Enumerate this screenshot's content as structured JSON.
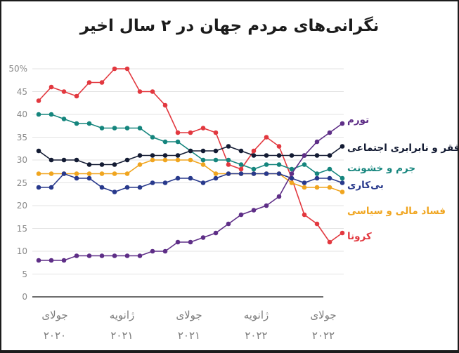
{
  "chart_data": {
    "type": "line",
    "title": "نگرانی‌های مردم جهان در ۲ سال اخیر",
    "xlabel": "",
    "ylabel": "",
    "ylim": [
      0,
      50
    ],
    "grid": true,
    "legend_position": "right",
    "points_count": 25,
    "y_ticks": [
      {
        "label": "50%",
        "value": 50
      },
      {
        "label": "45",
        "value": 45
      },
      {
        "label": "40",
        "value": 40
      },
      {
        "label": "35",
        "value": 35
      },
      {
        "label": "30",
        "value": 30
      },
      {
        "label": "25",
        "value": 25
      },
      {
        "label": "20",
        "value": 20
      },
      {
        "label": "15",
        "value": 15
      },
      {
        "label": "10",
        "value": 10
      },
      {
        "label": "5",
        "value": 5
      },
      {
        "label": "0",
        "value": 0
      }
    ],
    "x_ticks": [
      {
        "month": "جولای",
        "year": "۲۰۲۰",
        "index": 0
      },
      {
        "month": "ژانویه",
        "year": "۲۰۲۱",
        "index": 6
      },
      {
        "month": "جولای",
        "year": "۲۰۲۱",
        "index": 12
      },
      {
        "month": "ژانویه",
        "year": "۲۰۲۲",
        "index": 18
      },
      {
        "month": "جولای",
        "year": "۲۰۲۲",
        "index": 24
      }
    ],
    "series": [
      {
        "key": "inflation",
        "label": "تورم",
        "color": "#5e2e87",
        "values": [
          8,
          8,
          8,
          9,
          9,
          9,
          9,
          9,
          9,
          10,
          10,
          12,
          12,
          13,
          14,
          16,
          18,
          19,
          20,
          22,
          27,
          31,
          34,
          36,
          38
        ]
      },
      {
        "key": "poverty-inequality",
        "label": "فقر و نابرابری اجتماعی",
        "color": "#131b33",
        "values": [
          32,
          30,
          30,
          30,
          29,
          29,
          29,
          30,
          31,
          31,
          31,
          31,
          32,
          32,
          32,
          33,
          32,
          31,
          31,
          31,
          31,
          31,
          31,
          31,
          33
        ]
      },
      {
        "key": "crime-violence",
        "label": "جرم و خشونت",
        "color": "#15857d",
        "values": [
          40,
          40,
          39,
          38,
          38,
          37,
          37,
          37,
          37,
          35,
          34,
          34,
          32,
          30,
          30,
          30,
          29,
          28,
          29,
          29,
          28,
          29,
          27,
          28,
          26
        ]
      },
      {
        "key": "unemployment",
        "label": "بی‌کاری",
        "color": "#28398c",
        "values": [
          24,
          24,
          27,
          26,
          26,
          24,
          23,
          24,
          24,
          25,
          25,
          26,
          26,
          25,
          26,
          27,
          27,
          27,
          27,
          27,
          26,
          25,
          26,
          26,
          25
        ]
      },
      {
        "key": "corruption",
        "label": "فساد مالی و سیاسی",
        "color": "#f0a51f",
        "values": [
          27,
          27,
          27,
          27,
          27,
          27,
          27,
          27,
          29,
          30,
          30,
          30,
          30,
          29,
          27,
          27,
          27,
          27,
          27,
          27,
          25,
          24,
          24,
          24,
          23
        ]
      },
      {
        "key": "coronavirus",
        "label": "کرونا",
        "color": "#e2383f",
        "values": [
          43,
          46,
          45,
          44,
          47,
          47,
          50,
          50,
          45,
          45,
          42,
          36,
          36,
          37,
          36,
          29,
          28,
          32,
          35,
          33,
          26,
          18,
          16,
          12,
          14
        ]
      }
    ]
  }
}
